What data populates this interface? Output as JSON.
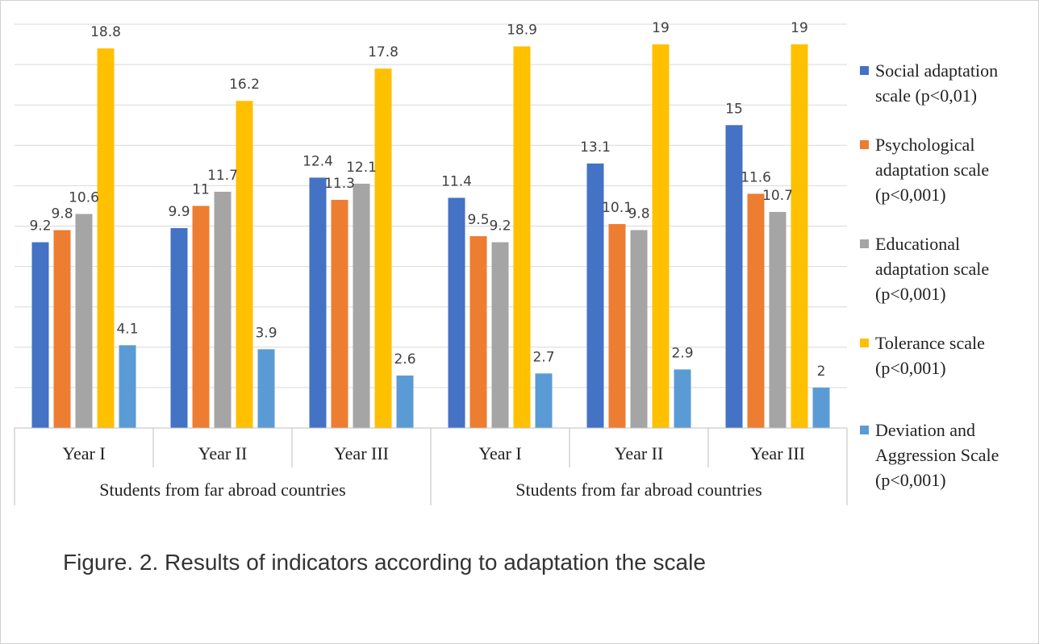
{
  "chart_data": {
    "type": "bar",
    "title": "",
    "xlabel": "",
    "ylabel": "",
    "ylim": [
      0,
      20
    ],
    "grid": true,
    "legend_position": "right",
    "group_labels": [
      "Students from far abroad countries",
      "Students from far abroad countries"
    ],
    "categories": [
      "Year I",
      "Year II",
      "Year III",
      "Year I",
      "Year II",
      "Year III"
    ],
    "series": [
      {
        "name": "Social adaptation scale (p<0,01)",
        "color": "#4472C4",
        "values": [
          9.2,
          9.9,
          12.4,
          11.4,
          13.1,
          15
        ],
        "labels": [
          "9.2",
          "9.9",
          "12.4",
          "11.4",
          "13.1",
          "15"
        ]
      },
      {
        "name": "Psychological adaptation scale (p<0,001)",
        "color": "#ED7D31",
        "values": [
          9.8,
          11,
          11.3,
          9.5,
          10.1,
          11.6
        ],
        "labels": [
          "9.8",
          "11",
          "11.3",
          "9.5",
          "10.1",
          "11.6"
        ]
      },
      {
        "name": "Educational adaptation scale (p<0,001)",
        "color": "#A5A5A5",
        "values": [
          10.6,
          11.7,
          12.1,
          9.2,
          9.8,
          10.7
        ],
        "labels": [
          "10.6",
          "11.7",
          "12.1",
          "9.2",
          "9.8",
          "10.7"
        ]
      },
      {
        "name": "Tolerance scale (p<0,001)",
        "color": "#FFC000",
        "values": [
          18.8,
          16.2,
          17.8,
          18.9,
          19,
          19
        ],
        "labels": [
          "18.8",
          "16.2",
          "17.8",
          "18.9",
          "19",
          "19"
        ]
      },
      {
        "name": "Deviation and Aggression Scale (p<0,001)",
        "color": "#5B9BD5",
        "values": [
          4.1,
          3.9,
          2.6,
          2.7,
          2.9,
          2
        ],
        "labels": [
          "4.1",
          "3.9",
          "2.6",
          "2.7",
          "2.9",
          "2"
        ]
      }
    ]
  },
  "caption": "Figure. 2. Results of indicators according to adaptation the scale"
}
